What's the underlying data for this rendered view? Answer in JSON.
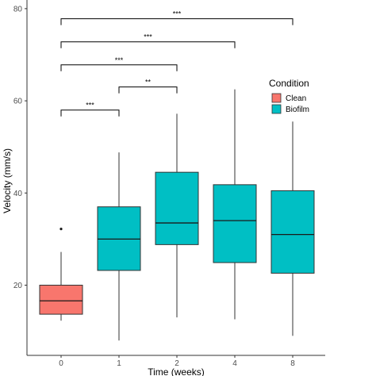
{
  "chart_data": {
    "type": "box",
    "xlabel": "Time (weeks)",
    "ylabel": "Velocity (mm/s)",
    "ylim": [
      8,
      81
    ],
    "yticks": [
      20,
      40,
      60,
      80
    ],
    "grid": false,
    "legend": {
      "title": "Condition",
      "placement": "right",
      "entries": [
        {
          "label": "Clean",
          "color": "#F8766D"
        },
        {
          "label": "Biofilm",
          "color": "#00BFC4"
        }
      ]
    },
    "categories": [
      "0",
      "1",
      "2",
      "4",
      "8"
    ],
    "boxes": [
      {
        "category": "0",
        "condition": "Clean",
        "whisker_low": 12.3,
        "q1": 13.7,
        "median": 16.6,
        "q3": 20.0,
        "whisker_high": 27.2,
        "outliers": [
          32.2
        ]
      },
      {
        "category": "1",
        "condition": "Biofilm",
        "whisker_low": 8.0,
        "q1": 23.2,
        "median": 30.0,
        "q3": 37.0,
        "whisker_high": 48.8,
        "outliers": []
      },
      {
        "category": "2",
        "condition": "Biofilm",
        "whisker_low": 13.0,
        "q1": 28.8,
        "median": 33.5,
        "q3": 44.5,
        "whisker_high": 57.2,
        "outliers": []
      },
      {
        "category": "4",
        "condition": "Biofilm",
        "whisker_low": 12.6,
        "q1": 24.9,
        "median": 34.0,
        "q3": 41.8,
        "whisker_high": 62.5,
        "outliers": []
      },
      {
        "category": "8",
        "condition": "Biofilm",
        "whisker_low": 9.0,
        "q1": 22.6,
        "median": 31.0,
        "q3": 40.5,
        "whisker_high": 55.5,
        "outliers": []
      }
    ],
    "significance": [
      {
        "from": "0",
        "to": "1",
        "label": "***",
        "y": 58.0
      },
      {
        "from": "1",
        "to": "2",
        "label": "**",
        "y": 63.0
      },
      {
        "from": "0",
        "to": "2",
        "label": "***",
        "y": 67.8
      },
      {
        "from": "0",
        "to": "4",
        "label": "***",
        "y": 72.8
      },
      {
        "from": "0",
        "to": "8",
        "label": "***",
        "y": 77.8
      }
    ]
  }
}
